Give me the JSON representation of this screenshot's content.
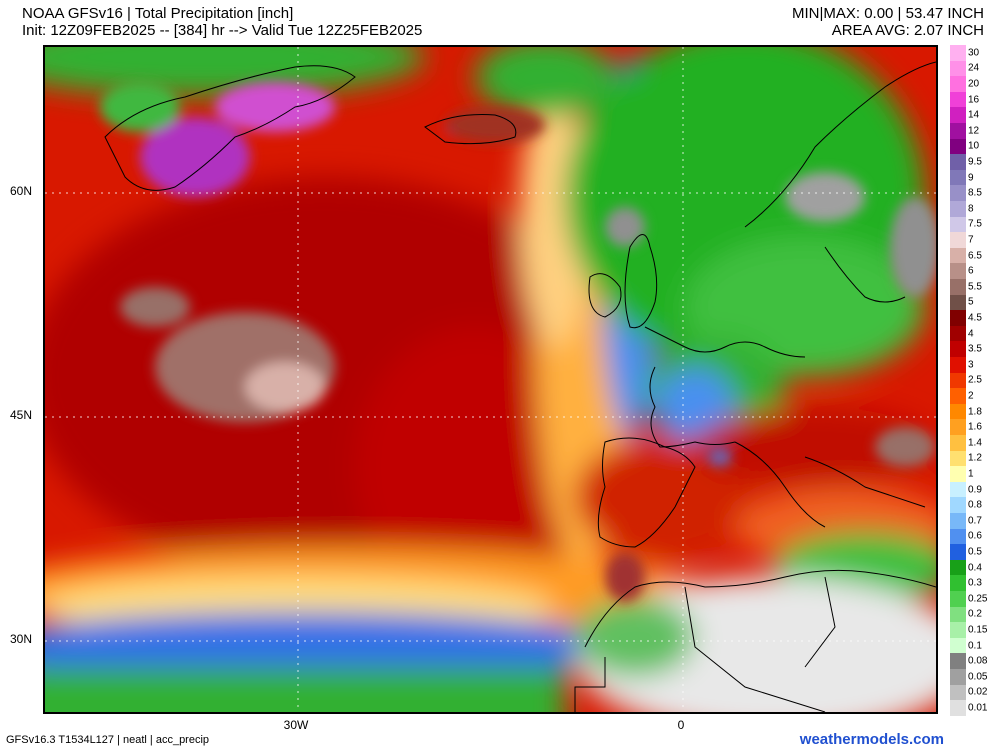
{
  "header": {
    "title_line1": "NOAA GFSv16 |  Total Precipitation [inch]",
    "title_line2": "Init: 12Z09FEB2025 -- [384] hr --> Valid Tue 12Z25FEB2025",
    "stats_line1": "MIN|MAX: 0.00 | 53.47 INCH",
    "stats_line2": "AREA AVG: 2.07 INCH"
  },
  "axes": {
    "lat_labels": [
      "60N",
      "45N",
      "30N"
    ],
    "lon_labels": [
      "30W",
      "0"
    ]
  },
  "footer": {
    "model_info": "GFSv16.3 T1534L127 | neatl | acc_precip",
    "brand": "weathermodels.com"
  },
  "colorbar": {
    "levels": [
      {
        "label": "30",
        "color": "#ffb0f0"
      },
      {
        "label": "24",
        "color": "#ff90e8"
      },
      {
        "label": "20",
        "color": "#ff70e0"
      },
      {
        "label": "16",
        "color": "#f040d8"
      },
      {
        "label": "14",
        "color": "#d020c0"
      },
      {
        "label": "12",
        "color": "#a010a0"
      },
      {
        "label": "10",
        "color": "#800080"
      },
      {
        "label": "9.5",
        "color": "#7060a8"
      },
      {
        "label": "9",
        "color": "#8078b8"
      },
      {
        "label": "8.5",
        "color": "#9890c8"
      },
      {
        "label": "8",
        "color": "#b0a8d8"
      },
      {
        "label": "7.5",
        "color": "#d0c8e8"
      },
      {
        "label": "7",
        "color": "#f0d8d8"
      },
      {
        "label": "6.5",
        "color": "#d8b0a8"
      },
      {
        "label": "6",
        "color": "#b89088"
      },
      {
        "label": "5.5",
        "color": "#987068"
      },
      {
        "label": "5",
        "color": "#705048"
      },
      {
        "label": "4.5",
        "color": "#800000"
      },
      {
        "label": "4",
        "color": "#a00000"
      },
      {
        "label": "3.5",
        "color": "#c00000"
      },
      {
        "label": "3",
        "color": "#e01000"
      },
      {
        "label": "2.5",
        "color": "#f03800"
      },
      {
        "label": "2",
        "color": "#ff6000"
      },
      {
        "label": "1.8",
        "color": "#ff8800"
      },
      {
        "label": "1.6",
        "color": "#ffa020"
      },
      {
        "label": "1.4",
        "color": "#ffc040"
      },
      {
        "label": "1.2",
        "color": "#ffe070"
      },
      {
        "label": "1",
        "color": "#ffffb0"
      },
      {
        "label": "0.9",
        "color": "#c8f0ff"
      },
      {
        "label": "0.8",
        "color": "#a0d8ff"
      },
      {
        "label": "0.7",
        "color": "#78b8f8"
      },
      {
        "label": "0.6",
        "color": "#5090f0"
      },
      {
        "label": "0.5",
        "color": "#2060e0"
      },
      {
        "label": "0.4",
        "color": "#18a018"
      },
      {
        "label": "0.3",
        "color": "#30c030"
      },
      {
        "label": "0.25",
        "color": "#50d050"
      },
      {
        "label": "0.2",
        "color": "#80e080"
      },
      {
        "label": "0.15",
        "color": "#a8f0a8"
      },
      {
        "label": "0.1",
        "color": "#d0ffd0"
      },
      {
        "label": "0.08",
        "color": "#808080"
      },
      {
        "label": "0.05",
        "color": "#a0a0a0"
      },
      {
        "label": "0.02",
        "color": "#c0c0c0"
      },
      {
        "label": "0.01",
        "color": "#e0e0e0"
      }
    ]
  }
}
